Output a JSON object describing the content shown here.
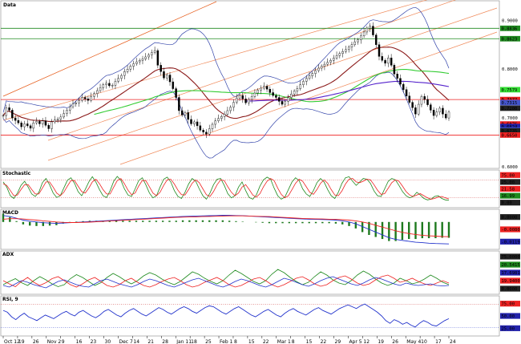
{
  "chart_data": [
    {
      "pane": "price",
      "type": "candlestick",
      "title": "Data",
      "x_ticks": [
        "Oct 12",
        "19",
        "26",
        "Nov 2",
        "9",
        "16",
        "23",
        "30",
        "Dec 7",
        "14",
        "21",
        "28",
        "Jan 11",
        "18",
        "25",
        "Feb 1",
        "8",
        "15",
        "22",
        "Mar 1",
        "8",
        "15",
        "22",
        "29",
        "Apr 5",
        "12",
        "19",
        "26",
        "May 4",
        "10",
        "17",
        "24"
      ],
      "close": [
        0.705,
        0.721,
        0.716,
        0.7,
        0.695,
        0.69,
        0.682,
        0.688,
        0.684,
        0.679,
        0.69,
        0.693,
        0.688,
        0.694,
        0.685,
        0.678,
        0.692,
        0.696,
        0.698,
        0.702,
        0.709,
        0.716,
        0.723,
        0.729,
        0.731,
        0.736,
        0.742,
        0.739,
        0.736,
        0.744,
        0.75,
        0.756,
        0.762,
        0.768,
        0.771,
        0.766,
        0.767,
        0.775,
        0.781,
        0.787,
        0.795,
        0.8,
        0.806,
        0.811,
        0.815,
        0.818,
        0.821,
        0.825,
        0.829,
        0.834,
        0.838,
        0.808,
        0.795,
        0.782,
        0.788,
        0.774,
        0.76,
        0.742,
        0.715,
        0.706,
        0.711,
        0.697,
        0.688,
        0.692,
        0.684,
        0.675,
        0.671,
        0.667,
        0.678,
        0.687,
        0.694,
        0.699,
        0.703,
        0.708,
        0.715,
        0.722,
        0.732,
        0.741,
        0.746,
        0.739,
        0.731,
        0.738,
        0.744,
        0.751,
        0.757,
        0.761,
        0.765,
        0.759,
        0.752,
        0.746,
        0.742,
        0.734,
        0.728,
        0.734,
        0.742,
        0.749,
        0.755,
        0.76,
        0.768,
        0.775,
        0.781,
        0.786,
        0.791,
        0.797,
        0.802,
        0.806,
        0.81,
        0.814,
        0.818,
        0.823,
        0.828,
        0.832,
        0.836,
        0.84,
        0.845,
        0.85,
        0.856,
        0.86,
        0.868,
        0.876,
        0.884,
        0.888,
        0.87,
        0.85,
        0.826,
        0.818,
        0.812,
        0.823,
        0.808,
        0.79,
        0.781,
        0.769,
        0.758,
        0.745,
        0.732,
        0.721,
        0.708,
        0.728,
        0.744,
        0.738,
        0.727,
        0.716,
        0.705,
        0.712,
        0.72,
        0.708,
        0.7,
        0.712
      ],
      "y_ticks": [
        "0.9000",
        "0.8000",
        "0.7000",
        "0.6000"
      ],
      "price_labels": [
        {
          "text": "0.8836",
          "color": "#1e8a1e"
        },
        {
          "text": "0.8623",
          "color": "#1e8a1e"
        },
        {
          "text": "0.7579",
          "color": "#33dd33"
        },
        {
          "text": "0.7377",
          "color": "#ee2222"
        },
        {
          "text": "0.7315",
          "color": "#4455cc"
        },
        {
          "text": "0.7200",
          "color": "#222222"
        },
        {
          "text": "0.6876",
          "color": "#ee2222"
        },
        {
          "text": "0.6824",
          "color": "#2222aa"
        },
        {
          "text": "0.6753",
          "color": "#4455cc"
        },
        {
          "text": "0.6735",
          "color": "#222222"
        },
        {
          "text": "0.6650",
          "color": "#ee2222"
        }
      ],
      "hlines": [
        {
          "value": 0.8836,
          "color": "#1e8a1e"
        },
        {
          "value": 0.8623,
          "color": "#1e8a1e"
        },
        {
          "value": 0.7377,
          "color": "#ee2222"
        },
        {
          "value": 0.665,
          "color": "#ee2222"
        }
      ],
      "ylim": [
        0.6,
        0.935
      ]
    },
    {
      "pane": "stochastic",
      "type": "line",
      "title": "Stochastic",
      "y_labels": [
        {
          "text": "75.00",
          "color": "#ee2222"
        },
        {
          "text": "25.00",
          "color": "#222222"
        },
        {
          "text": "21.58",
          "color": "#ee2222"
        },
        {
          "text": "16.99",
          "color": "#1e8a1e"
        },
        {
          "text": "0.00",
          "color": "#222222"
        }
      ],
      "ylim": [
        0,
        100
      ],
      "levels": [
        75,
        25
      ],
      "series": [
        {
          "color": "#1e8a1e",
          "values": [
            70,
            55,
            30,
            22,
            38,
            60,
            72,
            55,
            35,
            28,
            40,
            68,
            80,
            62,
            38,
            25,
            30,
            52,
            75,
            82,
            66,
            42,
            30,
            48,
            70,
            85,
            70,
            48,
            30,
            25,
            45,
            72,
            86,
            75,
            50,
            32,
            28,
            50,
            74,
            82,
            62,
            38,
            24,
            30,
            55,
            78,
            84,
            70,
            45,
            28,
            22,
            40,
            64,
            80,
            72,
            50,
            30,
            20,
            38,
            62,
            78,
            80,
            60,
            36,
            24,
            30,
            55,
            70,
            45,
            25,
            20,
            32,
            58,
            76,
            84,
            78,
            52,
            30,
            20,
            26,
            48,
            70,
            82,
            74,
            50,
            35,
            28,
            45,
            68,
            80,
            70,
            48,
            30,
            22,
            40,
            66,
            82,
            85,
            72,
            60,
            70,
            80,
            78,
            66,
            44,
            30,
            28,
            50,
            72,
            80,
            76,
            60,
            42,
            30,
            24,
            28,
            40,
            32,
            22,
            18,
            20,
            28,
            30,
            22,
            18,
            17
          ]
        },
        {
          "color": "#ee2222",
          "values": [
            65,
            60,
            45,
            30,
            32,
            48,
            62,
            62,
            48,
            35,
            35,
            52,
            70,
            70,
            55,
            38,
            30,
            40,
            58,
            74,
            74,
            58,
            42,
            38,
            52,
            70,
            78,
            65,
            48,
            35,
            35,
            55,
            74,
            80,
            65,
            46,
            33,
            38,
            58,
            74,
            74,
            56,
            38,
            30,
            40,
            60,
            76,
            78,
            64,
            46,
            33,
            32,
            48,
            66,
            76,
            68,
            50,
            33,
            28,
            42,
            62,
            76,
            74,
            56,
            40,
            30,
            38,
            55,
            62,
            48,
            32,
            26,
            36,
            56,
            72,
            80,
            74,
            52,
            34,
            24,
            30,
            48,
            66,
            78,
            72,
            56,
            40,
            34,
            48,
            66,
            76,
            66,
            48,
            32,
            30,
            44,
            64,
            78,
            80,
            70,
            68,
            72,
            78,
            76,
            62,
            46,
            34,
            36,
            52,
            68,
            76,
            72,
            58,
            42,
            32,
            28,
            32,
            36,
            30,
            24,
            20,
            22,
            26,
            28,
            24,
            21
          ]
        }
      ]
    },
    {
      "pane": "macd",
      "type": "line",
      "title": "MACD",
      "y_labels": [
        {
          "text": "0.0000",
          "color": "#222222"
        },
        {
          "text": "-0.0080",
          "color": "#ee2222"
        },
        {
          "text": "-0.0119",
          "color": "#2222aa"
        }
      ],
      "ylim": [
        -0.014,
        0.006
      ],
      "series": [
        {
          "color": "#2233cc",
          "values": [
            0.0035,
            0.003,
            0.002,
            0.001,
            0.0004,
            0.0,
            -0.0004,
            -0.0006,
            -0.0008,
            -0.0006,
            -0.0004,
            -0.0002,
            0.0,
            0.0002,
            0.0004,
            0.0006,
            0.0008,
            0.001,
            0.0012,
            0.0014,
            0.0016,
            0.0018,
            0.002,
            0.0022,
            0.0024,
            0.0026,
            0.0028,
            0.003,
            0.0031,
            0.0032,
            0.0033,
            0.0034,
            0.0035,
            0.0036,
            0.0036,
            0.0035,
            0.0034,
            0.0032,
            0.003,
            0.0028,
            0.0026,
            0.0024,
            0.0022,
            0.002,
            0.0018,
            0.0016,
            0.0015,
            0.0014,
            0.0013,
            0.0012,
            0.001,
            0.0006,
            0.0,
            -0.001,
            -0.0025,
            -0.004,
            -0.0055,
            -0.007,
            -0.0085,
            -0.0095,
            -0.01,
            -0.0105,
            -0.011,
            -0.0112,
            -0.0115,
            -0.0117,
            -0.0118,
            -0.0119
          ]
        },
        {
          "color": "#ee2222",
          "values": [
            0.0015,
            0.0018,
            0.0018,
            0.0016,
            0.0013,
            0.001,
            0.0006,
            0.0003,
            0.0,
            -0.0002,
            -0.0003,
            -0.0003,
            -0.0002,
            -0.0001,
            0.0001,
            0.0003,
            0.0005,
            0.0007,
            0.0009,
            0.0011,
            0.0013,
            0.0015,
            0.0017,
            0.0019,
            0.0021,
            0.0023,
            0.0025,
            0.0026,
            0.0027,
            0.0028,
            0.0029,
            0.003,
            0.0031,
            0.0032,
            0.0033,
            0.0033,
            0.0033,
            0.0032,
            0.0031,
            0.003,
            0.0029,
            0.0027,
            0.0025,
            0.0023,
            0.0021,
            0.0019,
            0.0018,
            0.0017,
            0.0016,
            0.0015,
            0.0014,
            0.0012,
            0.001,
            0.0006,
            0.0,
            -0.0008,
            -0.0018,
            -0.0028,
            -0.0038,
            -0.0048,
            -0.0056,
            -0.0063,
            -0.0068,
            -0.0072,
            -0.0075,
            -0.0077,
            -0.0079,
            -0.008
          ]
        }
      ]
    },
    {
      "pane": "adx",
      "type": "line",
      "title": "ADX",
      "y_labels": [
        {
          "text": "75.0000",
          "color": "#222222"
        },
        {
          "text": "20.5415",
          "color": "#1e8a1e"
        },
        {
          "text": "17.6981",
          "color": "#2222aa"
        },
        {
          "text": "19.9400",
          "color": "#ee2222"
        },
        {
          "text": "0.0000",
          "color": "#222222"
        }
      ],
      "ylim": [
        0,
        100
      ],
      "series": [
        {
          "color": "#1e8a1e",
          "values": [
            20,
            28,
            35,
            25,
            18,
            30,
            40,
            32,
            22,
            15,
            20,
            35,
            45,
            38,
            28,
            18,
            25,
            38,
            48,
            40,
            30,
            22,
            30,
            42,
            50,
            44,
            34,
            26,
            20,
            28,
            40,
            52,
            46,
            36,
            28,
            22,
            30,
            44,
            56,
            48,
            38,
            28,
            22,
            30,
            46,
            58,
            50,
            38,
            28,
            20,
            26,
            40,
            52,
            44,
            32,
            24,
            20,
            30,
            44,
            54,
            46,
            34,
            24,
            18,
            24,
            36,
            30,
            22,
            26,
            34,
            44,
            36,
            26,
            20
          ]
        },
        {
          "color": "#ee2222",
          "values": [
            30,
            22,
            15,
            28,
            38,
            26,
            18,
            25,
            35,
            40,
            30,
            20,
            14,
            22,
            32,
            38,
            28,
            18,
            14,
            20,
            30,
            36,
            26,
            18,
            14,
            20,
            28,
            34,
            38,
            30,
            20,
            14,
            18,
            26,
            32,
            38,
            30,
            20,
            14,
            18,
            26,
            34,
            38,
            30,
            20,
            14,
            20,
            28,
            36,
            40,
            32,
            22,
            16,
            20,
            30,
            38,
            42,
            34,
            24,
            18,
            22,
            32,
            40,
            44,
            36,
            26,
            30,
            36,
            28,
            22,
            18,
            24,
            30,
            24
          ]
        },
        {
          "color": "#2233cc",
          "values": [
            18,
            14,
            22,
            30,
            26,
            20,
            16,
            12,
            20,
            28,
            32,
            26,
            20,
            16,
            14,
            22,
            30,
            34,
            28,
            22,
            18,
            14,
            20,
            28,
            34,
            30,
            24,
            18,
            14,
            20,
            26,
            32,
            36,
            30,
            24,
            18,
            14,
            20,
            28,
            34,
            30,
            24,
            18,
            14,
            20,
            28,
            36,
            32,
            26,
            20,
            16,
            22,
            30,
            36,
            40,
            34,
            28,
            22,
            18,
            24,
            32,
            38,
            34,
            28,
            22,
            18,
            24,
            20,
            18,
            20,
            22,
            18,
            17,
            18
          ]
        }
      ]
    },
    {
      "pane": "rsi",
      "type": "line",
      "title": "RSI, 9",
      "y_labels": [
        {
          "text": "75.00",
          "color": "#ee2222"
        },
        {
          "text": "50.00",
          "color": "#2222aa"
        },
        {
          "text": "25.00",
          "color": "#2222aa"
        }
      ],
      "ylim": [
        10,
        90
      ],
      "levels": [
        75,
        25
      ],
      "series": [
        {
          "color": "#2233cc",
          "values": [
            62,
            58,
            48,
            42,
            50,
            56,
            48,
            44,
            40,
            46,
            52,
            48,
            44,
            50,
            56,
            60,
            54,
            50,
            58,
            62,
            56,
            50,
            46,
            52,
            60,
            64,
            58,
            52,
            48,
            56,
            62,
            66,
            60,
            54,
            50,
            56,
            62,
            68,
            64,
            58,
            54,
            60,
            66,
            70,
            66,
            60,
            56,
            62,
            68,
            72,
            70,
            64,
            58,
            54,
            60,
            66,
            70,
            64,
            58,
            52,
            48,
            54,
            60,
            64,
            58,
            52,
            48,
            56,
            62,
            66,
            60,
            56,
            52,
            58,
            64,
            68,
            62,
            58,
            54,
            60,
            66,
            70,
            74,
            70,
            66,
            72,
            76,
            70,
            64,
            58,
            50,
            40,
            34,
            42,
            38,
            32,
            36,
            30,
            26,
            34,
            40,
            36,
            30,
            28,
            34,
            40,
            44
          ]
        }
      ]
    }
  ]
}
